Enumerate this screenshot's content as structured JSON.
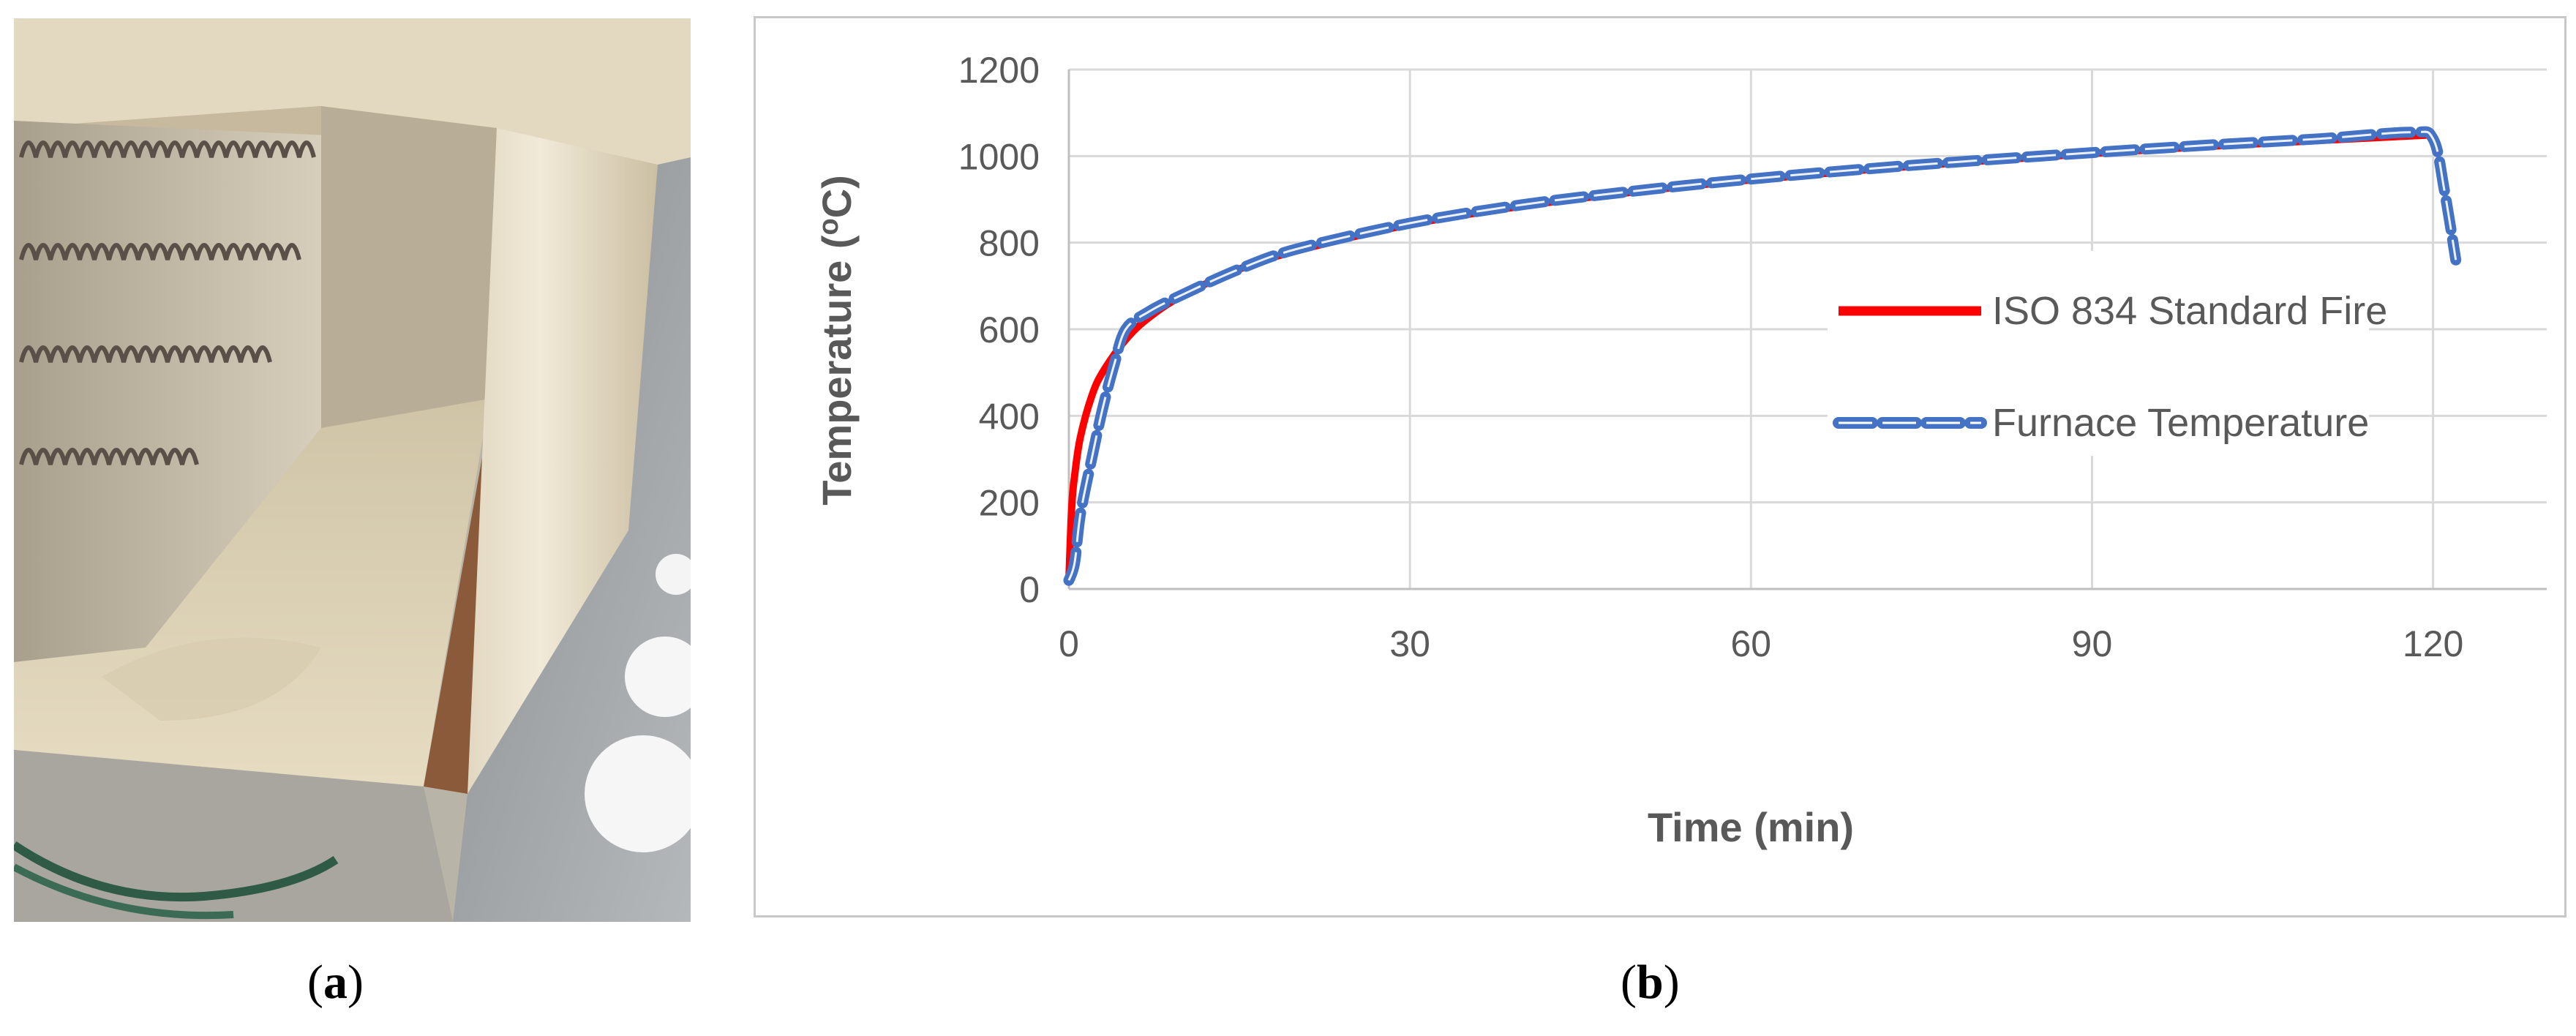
{
  "captions": {
    "a": {
      "open": "(",
      "letter": "a",
      "close": ")"
    },
    "b": {
      "open": "(",
      "letter": "b",
      "close": ")"
    }
  },
  "chart_data": {
    "type": "line",
    "xlabel": "Time (min)",
    "ylabel": "Temperature (oC)",
    "ylabel_parts": {
      "before": "Temperature (",
      "sup": "o",
      "after": "C)"
    },
    "xlim": [
      0,
      130
    ],
    "ylim": [
      0,
      1200
    ],
    "x_ticks": [
      0,
      30,
      60,
      90,
      120
    ],
    "y_ticks": [
      0,
      200,
      400,
      600,
      800,
      1000,
      1200
    ],
    "grid": true,
    "legend_position": "center-right",
    "series": [
      {
        "name": "ISO 834 Standard Fire",
        "color": "#ff0000",
        "style": "solid",
        "x": [
          0,
          0.25,
          0.5,
          1,
          2,
          3,
          5,
          7,
          10,
          15,
          20,
          30,
          40,
          50,
          60,
          70,
          80,
          90,
          100,
          110,
          120
        ],
        "y": [
          20,
          190,
          261,
          349,
          445,
          502,
          576,
          626,
          678,
          739,
          781,
          842,
          885,
          918,
          945,
          968,
          988,
          1006,
          1022,
          1036,
          1049
        ]
      },
      {
        "name": "Furnace Temperature",
        "color": "#4472c4",
        "style": "dashed",
        "x": [
          0,
          0.5,
          1,
          2,
          3,
          4,
          5,
          7,
          10,
          15,
          20,
          30,
          40,
          50,
          60,
          70,
          80,
          90,
          100,
          110,
          118,
          120,
          121,
          122
        ],
        "y": [
          20,
          60,
          170,
          300,
          420,
          520,
          600,
          640,
          680,
          739,
          785,
          845,
          888,
          920,
          947,
          970,
          990,
          1008,
          1025,
          1040,
          1055,
          1040,
          920,
          760
        ]
      }
    ]
  }
}
